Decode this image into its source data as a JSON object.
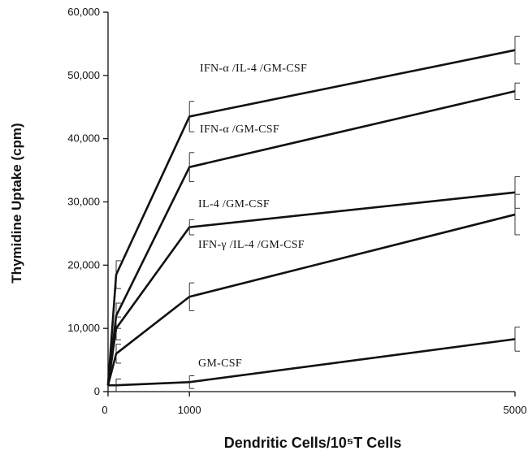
{
  "chart_data": {
    "type": "line",
    "title": "",
    "xlabel": "Dendritic Cells/10⁵T Cells",
    "ylabel": "Thymidine Uptake (cpm)",
    "x_ticks": [
      "0",
      "1000",
      "5000"
    ],
    "y_ticks": [
      "0",
      "10,000",
      "20,000",
      "30,000",
      "40,000",
      "50,000",
      "60,000"
    ],
    "xlim": [
      0,
      5000
    ],
    "ylim": [
      0,
      60000
    ],
    "grid": false,
    "legend": "inline labels",
    "series": [
      {
        "name": "IFN-α /IL-4 /GM-CSF",
        "x": [
          0,
          100,
          1000,
          5000
        ],
        "y": [
          1000,
          18500,
          43500,
          54000
        ],
        "err": [
          0,
          2200,
          2400,
          2200
        ]
      },
      {
        "name": "IFN-α /GM-CSF",
        "x": [
          0,
          100,
          1000,
          5000
        ],
        "y": [
          1000,
          12000,
          35500,
          47500
        ],
        "err": [
          0,
          2000,
          2300,
          1300
        ]
      },
      {
        "name": "IL-4 /GM-CSF",
        "x": [
          0,
          100,
          1000,
          5000
        ],
        "y": [
          1000,
          10000,
          26000,
          31500
        ],
        "err": [
          0,
          1800,
          1200,
          2500
        ]
      },
      {
        "name": "IFN-γ /IL-4 /GM-CSF",
        "x": [
          0,
          100,
          1000,
          5000
        ],
        "y": [
          1000,
          6000,
          15000,
          28000
        ],
        "err": [
          0,
          1500,
          2200,
          3200
        ]
      },
      {
        "name": "GM-CSF",
        "x": [
          0,
          100,
          1000,
          5000
        ],
        "y": [
          1000,
          1000,
          1500,
          8300
        ],
        "err": [
          0,
          1000,
          1000,
          1900
        ]
      }
    ]
  }
}
